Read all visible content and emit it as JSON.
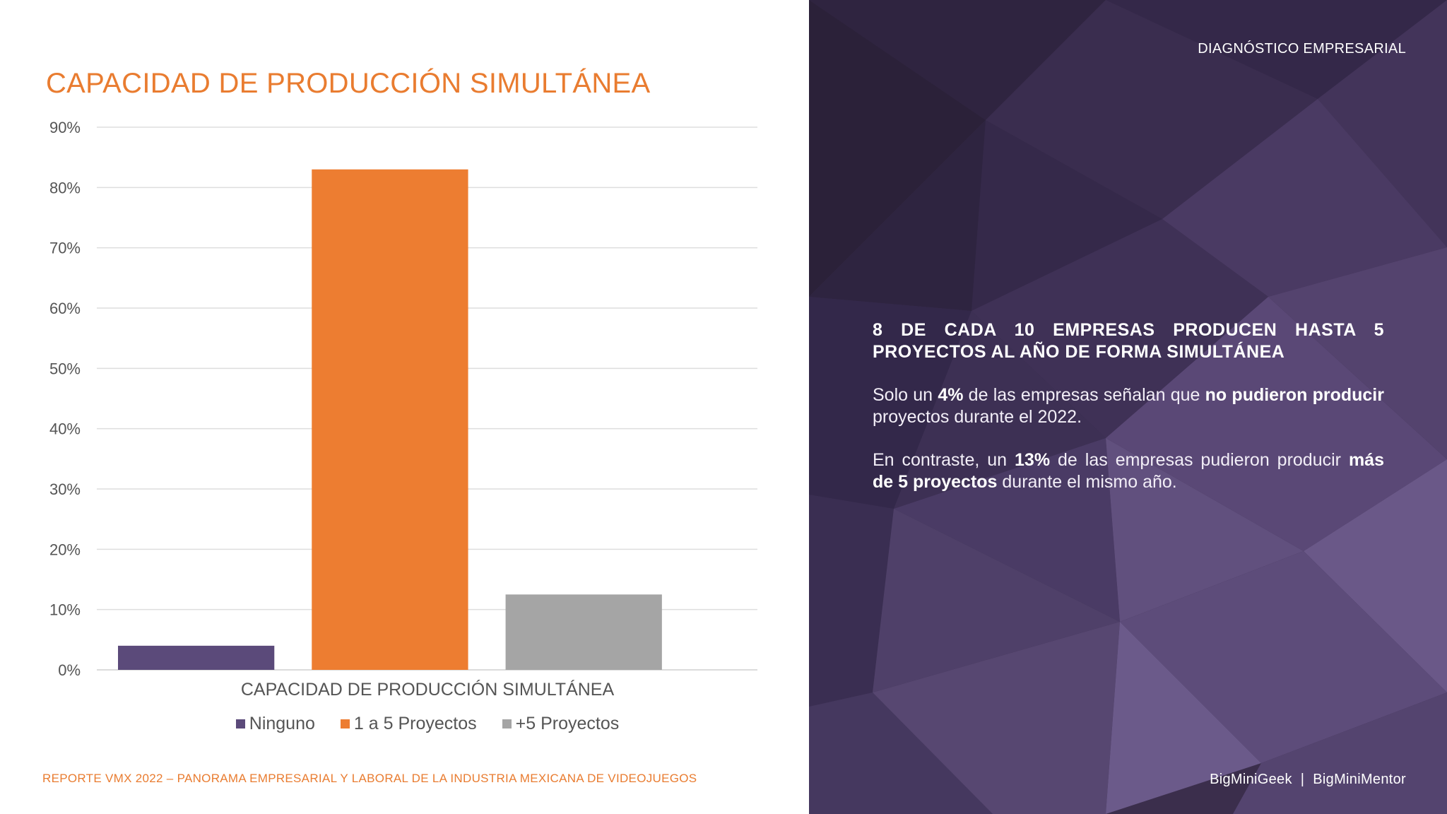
{
  "slide": {
    "title": "CAPACIDAD DE PRODUCCIÓN SIMULTÁNEA",
    "footer": "REPORTE VMX 2022 – PANORAMA EMPRESARIAL Y LABORAL DE LA INDUSTRIA MEXICANA DE VIDEOJUEGOS"
  },
  "chart_data": {
    "type": "bar",
    "title": "CAPACIDAD DE PRODUCCIÓN SIMULTÁNEA",
    "xlabel": "CAPACIDAD DE PRODUCCIÓN SIMULTÁNEA",
    "ylabel": "",
    "ylim": [
      0,
      90
    ],
    "yticks": [
      0,
      10,
      20,
      30,
      40,
      50,
      60,
      70,
      80,
      90
    ],
    "ytick_labels": [
      "0%",
      "10%",
      "20%",
      "30%",
      "40%",
      "50%",
      "60%",
      "70%",
      "80%",
      "90%"
    ],
    "grid": true,
    "legend_position": "bottom",
    "series": [
      {
        "name": "Ninguno",
        "value": 4,
        "color": "#5B4A7A"
      },
      {
        "name": "1 a 5 Proyectos",
        "value": 83,
        "color": "#ED7D31"
      },
      {
        "name": "+5 Proyectos",
        "value": 12.5,
        "color": "#A5A5A5"
      }
    ]
  },
  "sidebar": {
    "section_label": "DIAGNÓSTICO EMPRESARIAL",
    "headline": "8 DE CADA 10 EMPRESAS PRODUCEN HASTA 5 PROYECTOS AL AÑO DE FORMA SIMULTÁNEA",
    "paragraph1": {
      "t1": "Solo un ",
      "b1": "4%",
      "t2": " de las empresas señalan que ",
      "b2": "no pudieron producir",
      "t3": " proyectos durante el 2022."
    },
    "paragraph2": {
      "t1": "En contraste, un ",
      "b1": "13%",
      "t2": " de las empresas pudieron producir ",
      "b2": "más de 5 proyectos",
      "t3": " durante el mismo año."
    },
    "brand_1": "BigMiniGeek",
    "brand_sep": "|",
    "brand_2": "BigMiniMentor",
    "accent_color": "#E97C30",
    "panel_color": "#3a2d4a"
  }
}
